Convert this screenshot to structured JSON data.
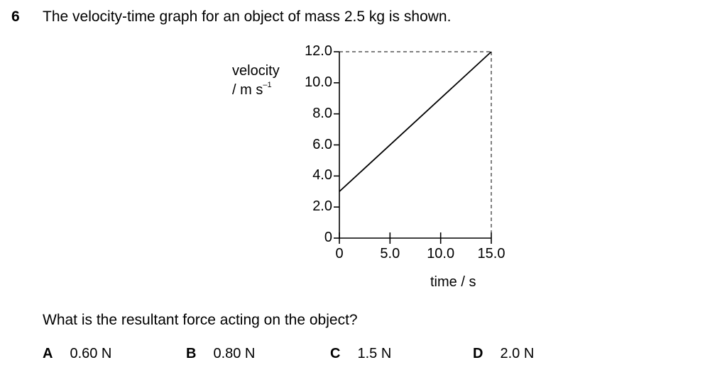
{
  "question": {
    "number": "6",
    "stem": "The velocity-time graph for an object of mass 2.5 kg is shown.",
    "prompt": "What is the resultant force acting on the object?"
  },
  "options": [
    {
      "letter": "A",
      "text": "0.60 N"
    },
    {
      "letter": "B",
      "text": "0.80 N"
    },
    {
      "letter": "C",
      "text": "1.5 N"
    },
    {
      "letter": "D",
      "text": "2.0 N"
    }
  ],
  "chart_data": {
    "type": "line",
    "title": "",
    "ylabel_line1": "velocity",
    "ylabel_unit": "/ m s",
    "ylabel_exp": "–1",
    "xlabel": "time / s",
    "xlim": [
      0,
      15.0
    ],
    "ylim": [
      0,
      12.0
    ],
    "x_tick_labels": [
      "0",
      "5.0",
      "10.0",
      "15.0"
    ],
    "y_tick_labels": [
      "0",
      "2.0",
      "4.0",
      "6.0",
      "8.0",
      "10.0",
      "12.0"
    ],
    "series": [
      {
        "x": [
          0,
          15.0
        ],
        "y": [
          3.0,
          12.0
        ]
      }
    ],
    "dashed_box_to": [
      15.0,
      12.0
    ]
  }
}
